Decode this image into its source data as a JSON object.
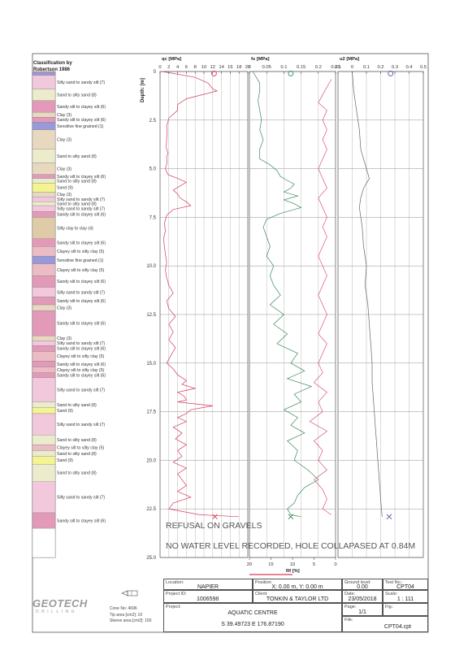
{
  "classification_title": [
    "Classification by",
    "Robertson 1986"
  ],
  "depth_label": "Depth: [m]",
  "depth_ticks": [
    0,
    2.5,
    5.0,
    7.5,
    10.0,
    12.5,
    15.0,
    17.5,
    20.0,
    22.5,
    25.0
  ],
  "soil_layers": [
    {
      "top": 0,
      "bottom": 0.05,
      "label": "",
      "color": "#e0a0c0"
    },
    {
      "top": 0.05,
      "bottom": 0.2,
      "label": "",
      "color": "#9a9ad8"
    },
    {
      "top": 0.2,
      "bottom": 0.9,
      "label": "Silty sand to sandy silt (7)",
      "color": "#f2c8dd"
    },
    {
      "top": 0.9,
      "bottom": 1.5,
      "label": "Sand to silty sand (8)",
      "color": "#ececcc"
    },
    {
      "top": 1.5,
      "bottom": 2.1,
      "label": "Sandy silt to clayey silt (6)",
      "color": "#e29ab8"
    },
    {
      "top": 2.1,
      "bottom": 2.35,
      "label": "Clay (3)",
      "color": "#e8d8c0"
    },
    {
      "top": 2.35,
      "bottom": 2.6,
      "label": "Sandy silt to clayey silt (6)",
      "color": "#e29ab8"
    },
    {
      "top": 2.6,
      "bottom": 3.0,
      "label": "Sensitive fine grained (1)",
      "color": "#9a9ad8"
    },
    {
      "top": 3.0,
      "bottom": 4.0,
      "label": "Clay (3)",
      "color": "#e8d8c0"
    },
    {
      "top": 4.0,
      "bottom": 4.7,
      "label": "Sand to silty sand (8)",
      "color": "#ececcc"
    },
    {
      "top": 4.7,
      "bottom": 5.3,
      "label": "Clay (3)",
      "color": "#e8d8c0"
    },
    {
      "top": 5.3,
      "bottom": 5.5,
      "label": "Sandy silt to clayey silt (6)",
      "color": "#e29ab8"
    },
    {
      "top": 5.5,
      "bottom": 5.75,
      "label": "Sand to silty sand (8)",
      "color": "#ececcc"
    },
    {
      "top": 5.75,
      "bottom": 6.2,
      "label": "Sand (9)",
      "color": "#f4f490"
    },
    {
      "top": 6.2,
      "bottom": 6.45,
      "label": "Clay (3)",
      "color": "#e8d8c0"
    },
    {
      "top": 6.45,
      "bottom": 6.7,
      "label": "Silty sand to sandy silt (7)",
      "color": "#f2c8dd"
    },
    {
      "top": 6.7,
      "bottom": 6.9,
      "label": "Sand to silty sand (8)",
      "color": "#ececcc"
    },
    {
      "top": 6.9,
      "bottom": 7.2,
      "label": "Silty sand to sandy silt (7)",
      "color": "#f2c8dd"
    },
    {
      "top": 7.2,
      "bottom": 7.5,
      "label": "Sandy silt to clayey silt (6)",
      "color": "#e29ab8"
    },
    {
      "top": 7.5,
      "bottom": 8.6,
      "label": "Silty clay to clay (4)",
      "color": "#e0cba8"
    },
    {
      "top": 8.6,
      "bottom": 9.0,
      "label": "Sandy silt to clayey silt (6)",
      "color": "#e29ab8"
    },
    {
      "top": 9.0,
      "bottom": 9.5,
      "label": "Clayey silt to silty clay (5)",
      "color": "#ecbcc4"
    },
    {
      "top": 9.5,
      "bottom": 9.9,
      "label": "Sensitive fine grained (1)",
      "color": "#9a9ad8"
    },
    {
      "top": 9.9,
      "bottom": 10.5,
      "label": "Clayey silt to silty clay (5)",
      "color": "#ecbcc4"
    },
    {
      "top": 10.5,
      "bottom": 11.1,
      "label": "Sandy silt to clayey silt (6)",
      "color": "#e29ab8"
    },
    {
      "top": 11.1,
      "bottom": 11.6,
      "label": "Silty sand to sandy silt (7)",
      "color": "#f2c8dd"
    },
    {
      "top": 11.6,
      "bottom": 12.0,
      "label": "Sandy silt to clayey silt (6)",
      "color": "#e29ab8"
    },
    {
      "top": 12.0,
      "bottom": 12.3,
      "label": "Clay (3)",
      "color": "#e8d8c0"
    },
    {
      "top": 12.3,
      "bottom": 13.6,
      "label": "Sandy silt to clayey silt (6)",
      "color": "#e29ab8"
    },
    {
      "top": 13.6,
      "bottom": 13.85,
      "label": "Clay (3)",
      "color": "#e8d8c0"
    },
    {
      "top": 13.85,
      "bottom": 14.1,
      "label": "Silty sand to sandy silt (7)",
      "color": "#f2c8dd"
    },
    {
      "top": 14.1,
      "bottom": 14.4,
      "label": "Sandy silt to clayey silt (6)",
      "color": "#e29ab8"
    },
    {
      "top": 14.4,
      "bottom": 14.9,
      "label": "Clayey silt to silty clay (5)",
      "color": "#ecbcc4"
    },
    {
      "top": 14.9,
      "bottom": 15.2,
      "label": "Sandy silt to clayey silt (6)",
      "color": "#e29ab8"
    },
    {
      "top": 15.2,
      "bottom": 15.5,
      "label": "Clayey silt to silty clay (5)",
      "color": "#ecbcc4"
    },
    {
      "top": 15.5,
      "bottom": 15.75,
      "label": "Sandy silt to clayey silt (6)",
      "color": "#e29ab8"
    },
    {
      "top": 15.75,
      "bottom": 17.0,
      "label": "Silty sand to sandy silt (7)",
      "color": "#f2c8dd"
    },
    {
      "top": 17.0,
      "bottom": 17.3,
      "label": "Sand to silty sand (8)",
      "color": "#ececcc"
    },
    {
      "top": 17.3,
      "bottom": 17.6,
      "label": "Sand (9)",
      "color": "#f4f490"
    },
    {
      "top": 17.6,
      "bottom": 18.7,
      "label": "Silty sand to sandy silt (7)",
      "color": "#f2c8dd"
    },
    {
      "top": 18.7,
      "bottom": 19.2,
      "label": "Sand to silty sand (8)",
      "color": "#ececcc"
    },
    {
      "top": 19.2,
      "bottom": 19.5,
      "label": "Clayey silt to silty clay (5)",
      "color": "#ecbcc4"
    },
    {
      "top": 19.5,
      "bottom": 19.8,
      "label": "Sand to silty sand (8)",
      "color": "#ececcc"
    },
    {
      "top": 19.8,
      "bottom": 20.2,
      "label": "Sand (9)",
      "color": "#f4f490"
    },
    {
      "top": 20.2,
      "bottom": 21.1,
      "label": "Sand to silty sand (8)",
      "color": "#ececcc"
    },
    {
      "top": 21.1,
      "bottom": 22.7,
      "label": "Silty sand to sandy silt (7)",
      "color": "#f2c8dd"
    },
    {
      "top": 22.7,
      "bottom": 23.5,
      "label": "Sandy silt to clayey silt (6)",
      "color": "#e29ab8"
    },
    {
      "top": 23.5,
      "bottom": 25.0,
      "label": "",
      "color": "#ffffff"
    }
  ],
  "chart_data": [
    {
      "type": "line",
      "name": "qc",
      "title": "qc [MPa]",
      "xlim": [
        0,
        20
      ],
      "x_ticks": [
        0,
        2,
        4,
        6,
        8,
        10,
        12,
        14,
        16,
        18,
        20
      ],
      "ylim": [
        0,
        25
      ],
      "color": "#d83a5a",
      "depth": [
        0,
        0.3,
        0.6,
        0.9,
        1.0,
        1.4,
        1.7,
        2.0,
        2.4,
        2.8,
        3.1,
        3.5,
        3.9,
        4.2,
        4.4,
        4.7,
        5.0,
        5.3,
        5.5,
        5.7,
        5.9,
        6.1,
        6.3,
        6.5,
        6.7,
        6.9,
        7.1,
        7.4,
        7.8,
        8.2,
        8.6,
        9.0,
        9.4,
        9.8,
        10.2,
        10.6,
        11.0,
        11.4,
        11.8,
        12.2,
        12.6,
        13.0,
        13.4,
        13.8,
        14.2,
        14.6,
        15.0,
        15.3,
        15.6,
        15.9,
        16.1,
        16.3,
        16.5,
        16.7,
        16.9,
        17.0,
        17.2,
        17.4,
        17.6,
        17.8,
        18.0,
        18.3,
        18.6,
        18.9,
        19.2,
        19.5,
        19.8,
        20.1,
        20.4,
        20.7,
        21.0,
        21.3,
        21.6,
        21.9,
        22.2,
        22.5,
        22.8,
        22.9
      ],
      "values": [
        0.5,
        8,
        11,
        12,
        13,
        6,
        4,
        4,
        2,
        1.5,
        1.6,
        1.5,
        1.4,
        1.8,
        1.5,
        1.6,
        1.2,
        1.8,
        4,
        6,
        4.5,
        3,
        4,
        4.5,
        6,
        7,
        3,
        1.5,
        1,
        1.2,
        0.8,
        1,
        1.2,
        1.5,
        1.2,
        1.5,
        2,
        3,
        1.5,
        2,
        3.5,
        2,
        3,
        2,
        3.5,
        2.5,
        1.5,
        3,
        4,
        6,
        5,
        8,
        4,
        5.5,
        6,
        4,
        12,
        7,
        6,
        4,
        6,
        3,
        5,
        3.5,
        6,
        4,
        5,
        3,
        6,
        4,
        5,
        6,
        4,
        7,
        3,
        2,
        9,
        18
      ]
    },
    {
      "type": "line",
      "name": "fs",
      "title": "fs [MPa]",
      "xlim": [
        0,
        0.25
      ],
      "x_ticks": [
        0,
        0.05,
        0.1,
        0.15,
        0.2,
        0.25
      ],
      "ylim": [
        0,
        25
      ],
      "color": "#3a8a5a",
      "depth": [
        0,
        0.3,
        0.6,
        1.0,
        1.5,
        2.0,
        2.5,
        3.0,
        3.5,
        4.0,
        4.5,
        4.8,
        5.1,
        5.4,
        5.6,
        5.8,
        6.0,
        6.2,
        6.4,
        6.6,
        6.8,
        7.0,
        7.3,
        7.6,
        8.0,
        8.5,
        9.0,
        9.5,
        10.0,
        10.5,
        11.0,
        11.5,
        12.0,
        12.5,
        13.0,
        13.5,
        14.0,
        14.5,
        15.0,
        15.4,
        15.8,
        16.2,
        16.6,
        17.0,
        17.4,
        17.8,
        18.2,
        18.6,
        19.0,
        19.5,
        20.0,
        20.5,
        21.0,
        21.4,
        21.8,
        22.2,
        22.5,
        22.8,
        22.9
      ],
      "values": [
        0.01,
        0.02,
        0.03,
        0.03,
        0.025,
        0.03,
        0.035,
        0.03,
        0.04,
        0.03,
        0.03,
        0.06,
        0.08,
        0.09,
        0.11,
        0.13,
        0.12,
        0.1,
        0.14,
        0.1,
        0.13,
        0.15,
        0.09,
        0.05,
        0.04,
        0.05,
        0.06,
        0.05,
        0.07,
        0.06,
        0.07,
        0.09,
        0.06,
        0.1,
        0.07,
        0.11,
        0.08,
        0.14,
        0.12,
        0.16,
        0.11,
        0.18,
        0.13,
        0.15,
        0.1,
        0.14,
        0.12,
        0.16,
        0.11,
        0.14,
        0.13,
        0.17,
        0.2,
        0.16,
        0.14,
        0.13,
        0.11,
        0.12,
        0.15
      ]
    },
    {
      "type": "line",
      "name": "Rf",
      "title": "Rf [%]",
      "xlim": [
        20,
        0
      ],
      "x_ticks": [
        20,
        15,
        10,
        5,
        0
      ],
      "ylim": [
        0,
        25
      ],
      "color": "#d83a5a",
      "depth": [
        0.4,
        0.8,
        1.2,
        1.6,
        2.0,
        2.5,
        3.0,
        3.5,
        4.0,
        4.5,
        5.0,
        5.5,
        6.0,
        6.5,
        7.0,
        7.5,
        8.0,
        8.5,
        9.0,
        9.5,
        10.0,
        10.5,
        11.0,
        11.5,
        12.0,
        12.5,
        13.0,
        13.5,
        14.0,
        14.5,
        15.0,
        15.5,
        16.0,
        16.5,
        17.0,
        17.5,
        18.0,
        18.5,
        19.0,
        19.5,
        20.0,
        20.5,
        21.0,
        21.5,
        22.0,
        22.5,
        22.8
      ],
      "values": [
        1,
        2,
        3,
        4,
        2,
        3,
        2,
        3,
        2,
        3,
        4,
        3,
        2,
        4,
        3,
        2,
        3,
        2,
        3,
        4,
        3,
        2,
        3,
        4,
        3,
        2,
        3,
        4,
        2,
        3,
        4,
        3,
        5,
        2,
        4,
        3,
        6,
        2,
        5,
        3,
        4,
        2,
        5,
        3,
        2,
        3,
        1
      ]
    },
    {
      "type": "line",
      "name": "u2",
      "title": "u2 [MPa]",
      "xlim": [
        -0.1,
        0.5
      ],
      "x_ticks": [
        -0.1,
        0,
        0.1,
        0.2,
        0.3,
        0.4,
        0.5
      ],
      "x_tick_labels": [
        "0.1",
        "0",
        "0.1",
        "0.2",
        "0.3",
        "0.4",
        "0.5"
      ],
      "ylim": [
        0,
        25
      ],
      "color": "#666666",
      "depth": [
        0,
        1.0,
        2.0,
        3.0,
        4.0,
        5.0,
        5.5,
        6.0,
        6.5,
        7.0,
        8.0,
        9.0,
        10.0,
        11.0,
        12.0,
        13.0,
        14.0,
        15.0,
        16.0,
        17.0,
        18.0,
        19.0,
        20.0,
        21.0,
        22.0,
        22.9
      ],
      "values": [
        0,
        0.01,
        0.03,
        0.05,
        0.06,
        0.1,
        0.12,
        0.08,
        0.06,
        0.05,
        0.07,
        0.08,
        0.1,
        0.09,
        0.11,
        0.12,
        0.13,
        0.14,
        0.14,
        0.15,
        0.16,
        0.17,
        0.18,
        0.19,
        0.2,
        0.21
      ]
    }
  ],
  "markers": [
    {
      "series": "qc",
      "value": 12.5,
      "depth": 22.9,
      "symbol": "x",
      "color": "#d83a5a"
    },
    {
      "series": "fs",
      "value": 0.12,
      "depth": 22.9,
      "symbol": "x",
      "color": "#3a8a5a"
    },
    {
      "series": "u2",
      "value": 0.26,
      "depth": 22.9,
      "symbol": "x",
      "color": "#5555aa"
    },
    {
      "series": "qc",
      "value": 12.3,
      "depth": 0.1,
      "symbol": "o",
      "color": "#d83a5a"
    },
    {
      "series": "fs",
      "value": 0.12,
      "depth": 0.1,
      "symbol": "o",
      "color": "#3a8a5a"
    },
    {
      "series": "u2",
      "value": 0.27,
      "depth": 0.1,
      "symbol": "o",
      "color": "#5555aa"
    }
  ],
  "annotations": [
    "REFUSAL ON GRAVELS",
    "NO WATER LEVEL RECORDED, HOLE COLLAPASED AT 0.84M"
  ],
  "footer": {
    "location_label": "Location:",
    "location": "NAPIER",
    "position_label": "Position:",
    "position": "X: 0.00 m, Y: 0.00 m",
    "ground_label": "Ground level:",
    "ground": "0.00",
    "test_label": "Test No.:",
    "test": "CPT04",
    "project_id_label": "Project ID:",
    "project_id": "1006598",
    "client_label": "Client:",
    "client": "TONKIN & TAYLOR LTD",
    "date_label": "Date:",
    "date": "23/05/2018",
    "scale_label": "Scale:",
    "scale": "1 : 111",
    "project_label": "Project:",
    "project": "AQUATIC CENTRE",
    "page_label": "Page:",
    "page": "1/1",
    "fig_label": "Fig.:",
    "coords": "S 39.49723 E 176.87190",
    "file_label": "File:",
    "file": "CPT04.cpt",
    "cone_no": "Cone No: 4696",
    "tip_area": "Tip area [cm2]: 10",
    "sleeve_area": "Sleeve area [cm2]: 150",
    "logo_main": "GEOTECH",
    "logo_sub": "DRILLING"
  }
}
